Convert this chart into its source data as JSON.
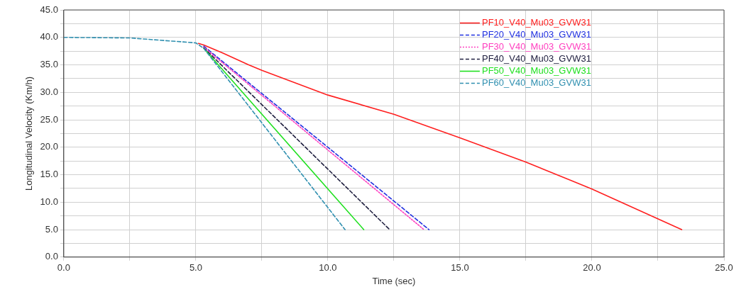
{
  "chart_data": {
    "type": "line",
    "xlabel": "Time (sec)",
    "ylabel": "Longitudinal Velocity (Km/h)",
    "xlim": [
      0,
      25
    ],
    "ylim": [
      0,
      45
    ],
    "xticks": [
      {
        "value": 0,
        "label": "0.0"
      },
      {
        "value": 2.5,
        "label": null
      },
      {
        "value": 5,
        "label": "5.0"
      },
      {
        "value": 7.5,
        "label": null
      },
      {
        "value": 10,
        "label": "10.0"
      },
      {
        "value": 12.5,
        "label": null
      },
      {
        "value": 15,
        "label": "15.0"
      },
      {
        "value": 17.5,
        "label": null
      },
      {
        "value": 20,
        "label": "20.0"
      },
      {
        "value": 22.5,
        "label": null
      },
      {
        "value": 25,
        "label": "25.0"
      }
    ],
    "yticks": [
      {
        "value": 0,
        "label": "0.0"
      },
      {
        "value": 2.5,
        "label": null
      },
      {
        "value": 5,
        "label": "5.0"
      },
      {
        "value": 7.5,
        "label": null
      },
      {
        "value": 10,
        "label": "10.0"
      },
      {
        "value": 12.5,
        "label": null
      },
      {
        "value": 15,
        "label": "15.0"
      },
      {
        "value": 17.5,
        "label": null
      },
      {
        "value": 20,
        "label": "20.0"
      },
      {
        "value": 22.5,
        "label": null
      },
      {
        "value": 25,
        "label": "25.0"
      },
      {
        "value": 27.5,
        "label": null
      },
      {
        "value": 30,
        "label": "30.0"
      },
      {
        "value": 32.5,
        "label": null
      },
      {
        "value": 35,
        "label": "35.0"
      },
      {
        "value": 37.5,
        "label": null
      },
      {
        "value": 40,
        "label": "40.0"
      },
      {
        "value": 42.5,
        "label": null
      },
      {
        "value": 45,
        "label": "45.0"
      }
    ],
    "grid": true,
    "legend": "top right",
    "marker": "none",
    "series": [
      {
        "name": "PF10_V40_Mu03_GVW31",
        "color": "#ff2020",
        "line_style": "solid",
        "x": [
          5.1,
          5.3,
          6,
          7,
          7.5,
          8.5,
          10,
          12.5,
          15,
          17.5,
          20,
          23.4
        ],
        "values": [
          38.9,
          38.6,
          37.2,
          35,
          34,
          32.2,
          29.5,
          26,
          21.7,
          17.3,
          12.4,
          5
        ]
      },
      {
        "name": "PF20_V40_Mu03_GVW31",
        "color": "#2030e0",
        "line_style": "dashed",
        "x": [
          5.3,
          13.83
        ],
        "values": [
          38.4,
          5
        ]
      },
      {
        "name": "PF30_V40_Mu03_GVW31",
        "color": "#ff40c0",
        "line_style": "dotted",
        "x": [
          5.3,
          13.64
        ],
        "values": [
          38.2,
          5
        ]
      },
      {
        "name": "PF40_V40_Mu03_GVW31",
        "color": "#202040",
        "line_style": "dashed",
        "x": [
          5.3,
          12.34
        ],
        "values": [
          38.1,
          5
        ]
      },
      {
        "name": "PF50_V40_Mu03_GVW31",
        "color": "#20e020",
        "line_style": "solid",
        "x": [
          5.3,
          11.36
        ],
        "values": [
          38,
          5
        ]
      },
      {
        "name": "PF60_V40_Mu03_GVW31",
        "color": "#3090b0",
        "line_style": "dashed",
        "x": [
          0,
          2.5,
          5,
          5.3,
          10.65
        ],
        "values": [
          40,
          39.9,
          39,
          38,
          5
        ]
      }
    ]
  }
}
